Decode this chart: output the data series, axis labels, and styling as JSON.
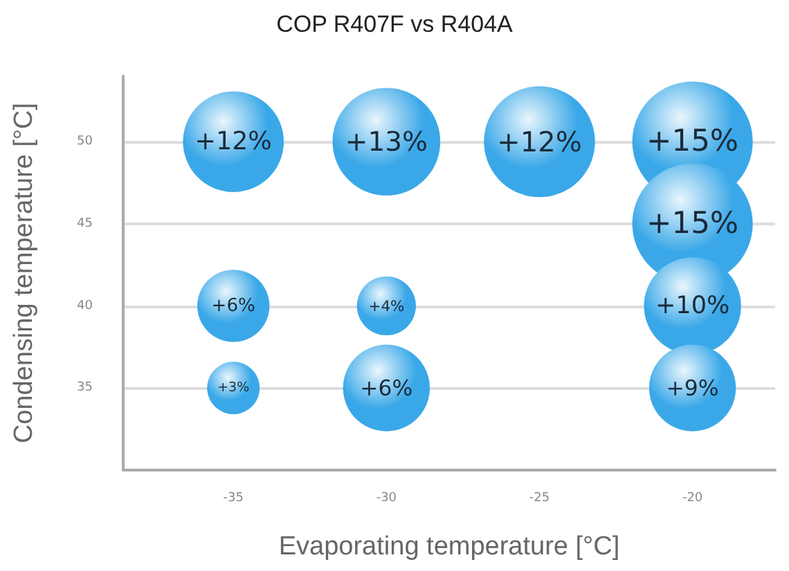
{
  "chart_data": {
    "type": "bubble",
    "title": "COP R407F vs R404A",
    "xlabel": "Evaporating temperature [°C]",
    "ylabel": "Condensing temperature [°C]",
    "x": [
      -35,
      -30,
      -25,
      -20,
      -20,
      -35,
      -30,
      -20,
      -35,
      -30,
      -20
    ],
    "values": [
      50,
      50,
      50,
      50,
      45,
      40,
      40,
      40,
      35,
      35,
      35
    ],
    "sizes": [
      0.7,
      0.8,
      0.85,
      1,
      1,
      0.36,
      0.24,
      0.65,
      0.19,
      0.52,
      0.52
    ],
    "annotations": [
      {
        "text": "+12%",
        "x": -35,
        "y": 50
      },
      {
        "text": "+13%",
        "x": -30,
        "y": 50
      },
      {
        "text": "+12%",
        "x": -25,
        "y": 50
      },
      {
        "text": "+15%",
        "x": -20,
        "y": 50
      },
      {
        "text": "+15%",
        "x": -20,
        "y": 45
      },
      {
        "text": "+6%",
        "x": -35,
        "y": 40
      },
      {
        "text": "+4%",
        "x": -30,
        "y": 40
      },
      {
        "text": "+10%",
        "x": -20,
        "y": 40
      },
      {
        "text": "+3%",
        "x": -35,
        "y": 35
      },
      {
        "text": "+6%",
        "x": -30,
        "y": 35
      },
      {
        "text": "+9%",
        "x": -20,
        "y": 35
      }
    ],
    "color": "#3aa8e8",
    "xlim": [
      -38.6,
      -17.3
    ],
    "xticks": [
      -35,
      -30,
      -25,
      -20
    ],
    "ylim": [
      30,
      54
    ],
    "yticks": [
      35,
      40,
      45,
      50
    ],
    "grid": "y"
  }
}
